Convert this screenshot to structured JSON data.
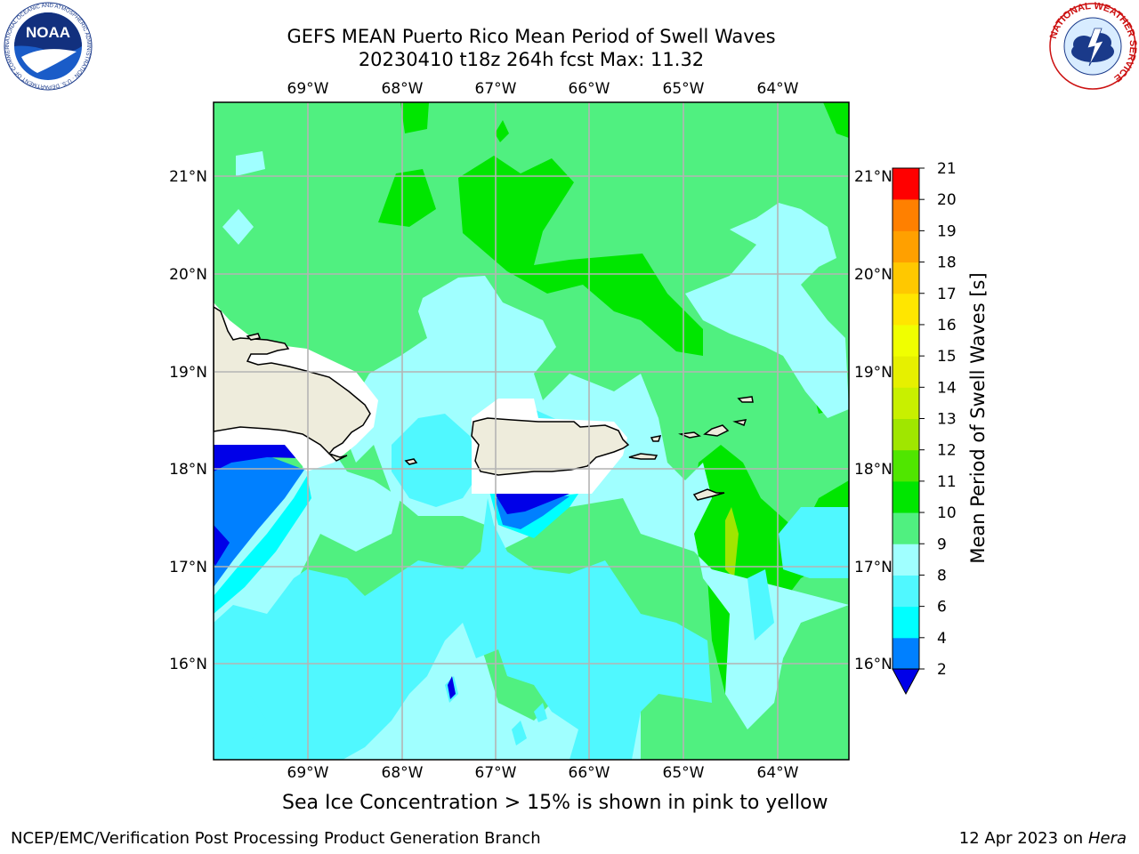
{
  "title": {
    "line1": "GEFS MEAN Puerto Rico Mean Period of Swell Waves",
    "line2": "20230410 t18z 264h fcst   Max: 11.32"
  },
  "map": {
    "lon_labels": [
      "69°W",
      "68°W",
      "67°W",
      "66°W",
      "65°W",
      "64°W"
    ],
    "lat_labels": [
      "21°N",
      "20°N",
      "19°N",
      "18°N",
      "17°N",
      "16°N"
    ],
    "ocean_color": "#50f080",
    "land_color": "#eeecdc",
    "grid_color": "#b4b4b4"
  },
  "colorbar": {
    "label": "Mean Period of Swell Waves [s]",
    "tick_labels": [
      "2",
      "4",
      "6",
      "8",
      "9",
      "10",
      "11",
      "12",
      "13",
      "14",
      "15",
      "16",
      "17",
      "18",
      "19",
      "20",
      "21"
    ],
    "colors": [
      "#0000e8",
      "#0080ff",
      "#00ffff",
      "#50f8ff",
      "#a0ffff",
      "#50f080",
      "#00e600",
      "#50e600",
      "#a0e600",
      "#c8f000",
      "#e6f000",
      "#f0ff00",
      "#ffe600",
      "#ffc800",
      "#ffa000",
      "#ff8000",
      "#ff5000",
      "#ff2800",
      "#ff0000"
    ]
  },
  "caption": "Sea Ice Concentration > 15% is shown in pink to yellow",
  "footer": {
    "left": "NCEP/EMC/Verification Post Processing Product Generation Branch",
    "date": "12 Apr 2023 on ",
    "machine": "Hera"
  },
  "logos": {
    "noaa_text": "NOAA",
    "noaa_ring": "NATIONAL OCEANIC AND ATMOSPHERIC ADMINISTRATION · U.S. DEPARTMENT OF COMMERCE",
    "nws_ring": "NATIONAL WEATHER SERVICE"
  }
}
